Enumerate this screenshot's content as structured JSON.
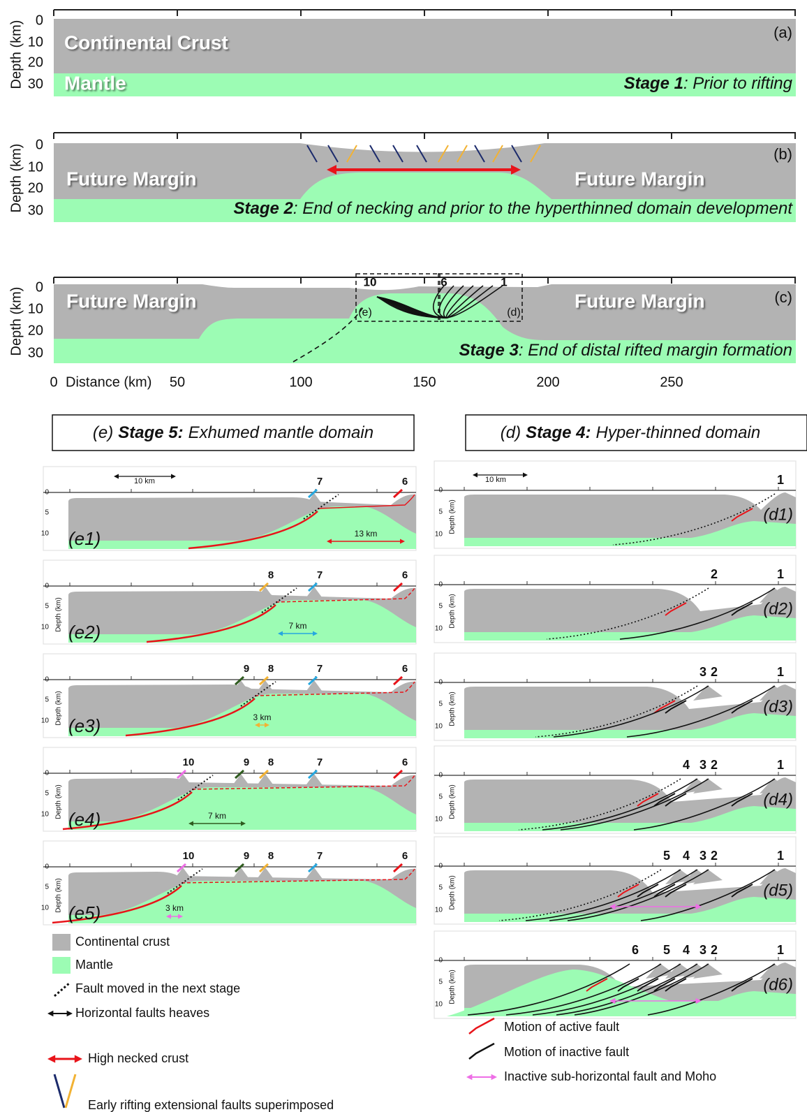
{
  "top_panels": [
    {
      "depth_label": "Depth (km)",
      "depth_ticks": [
        0,
        10,
        20,
        30
      ],
      "panel_label": "(a)",
      "texts": [
        "Continental Crust",
        "Mantle"
      ],
      "stage": "Stage 1",
      "stage_text": ": Prior to rifting"
    },
    {
      "depth_label": "Depth (km)",
      "depth_ticks": [
        0,
        10,
        20,
        30
      ],
      "panel_label": "(b)",
      "texts": [
        "Future Margin",
        "Future Margin"
      ],
      "stage": "Stage 2",
      "stage_text": ": End of necking and prior to the hyperthinned domain development"
    },
    {
      "depth_label": "Depth (km)",
      "depth_ticks": [
        0,
        10,
        20,
        30
      ],
      "panel_label": "(c)",
      "texts": [
        "Future Margin",
        "Future Margin"
      ],
      "box_labels": [
        "10",
        "6",
        "1"
      ],
      "box_names": [
        "(e)",
        "(d)"
      ],
      "stage": "Stage 3",
      "stage_text": ": End of distal rifted margin formation"
    }
  ],
  "distance_axis": {
    "label": "Distance (km)",
    "ticks": [
      0,
      50,
      100,
      150,
      200,
      250
    ]
  },
  "panel_e": {
    "header": {
      "prefix": "(e)",
      "stage": "Stage 5:",
      "text": "Exhumed mantle domain"
    },
    "scale": "10 km",
    "subpanels": [
      {
        "label": "(e1)",
        "depth_ticks": [
          0,
          5,
          10
        ],
        "faults": [
          {
            "number": 7,
            "color": "#26a7df"
          },
          {
            "number": 6,
            "color": "#e8141a"
          }
        ],
        "heave": {
          "text": "13 km",
          "color": "#e8141a"
        }
      },
      {
        "label": "(e2)",
        "depth_label": "Depth (km)",
        "depth_ticks": [
          0,
          5,
          10
        ],
        "faults": [
          {
            "number": 8,
            "color": "#f2b233"
          },
          {
            "number": 7,
            "color": "#26a7df"
          },
          {
            "number": 6,
            "color": "#e8141a"
          }
        ],
        "heave": {
          "text": "7 km",
          "color": "#26a7df"
        }
      },
      {
        "label": "(e3)",
        "depth_label": "Depth (km)",
        "depth_ticks": [
          0,
          5,
          10
        ],
        "faults": [
          {
            "number": 9,
            "color": "#2f5b1f"
          },
          {
            "number": 8,
            "color": "#f2b233"
          },
          {
            "number": 7,
            "color": "#26a7df"
          },
          {
            "number": 6,
            "color": "#e8141a"
          }
        ],
        "heave": {
          "text": "3 km",
          "color": "#f2b233"
        }
      },
      {
        "label": "(e4)",
        "depth_label": "Depth (km)",
        "depth_ticks": [
          0,
          5,
          10
        ],
        "faults": [
          {
            "number": 10,
            "color": "#ee6ee6"
          },
          {
            "number": 9,
            "color": "#2f5b1f"
          },
          {
            "number": 8,
            "color": "#f2b233"
          },
          {
            "number": 7,
            "color": "#26a7df"
          },
          {
            "number": 6,
            "color": "#e8141a"
          }
        ],
        "heave": {
          "text": "7 km",
          "color": "#2f5b1f"
        }
      },
      {
        "label": "(e5)",
        "depth_label": "Depth (km)",
        "depth_ticks": [
          0,
          5,
          10
        ],
        "faults": [
          {
            "number": 10,
            "color": "#ee6ee6"
          },
          {
            "number": 9,
            "color": "#2f5b1f"
          },
          {
            "number": 8,
            "color": "#f2b233"
          },
          {
            "number": 7,
            "color": "#26a7df"
          },
          {
            "number": 6,
            "color": "#e8141a"
          }
        ],
        "heave": {
          "text": "3 km",
          "color": "#ee6ee6"
        }
      }
    ]
  },
  "panel_d": {
    "header": {
      "prefix": "(d)",
      "stage": "Stage 4:",
      "text": "Hyper-thinned domain"
    },
    "scale": "10 km",
    "subpanels": [
      {
        "label": "(d1)",
        "depth_label": "Depth (km)",
        "depth_ticks": [
          0,
          5,
          10
        ],
        "faults": [
          {
            "number": 1,
            "color": "#e8141a"
          }
        ]
      },
      {
        "label": "(d2)",
        "depth_label": "Depth (km)",
        "depth_ticks": [
          0,
          5,
          10
        ],
        "faults": [
          {
            "number": 2,
            "color": "#e8141a"
          },
          {
            "number": 1,
            "color": "#111111"
          }
        ]
      },
      {
        "label": "(d3)",
        "depth_label": "Depth (km)",
        "depth_ticks": [
          0,
          5,
          10
        ],
        "faults": [
          {
            "number": 3,
            "color": "#e8141a"
          },
          {
            "number": 2,
            "color": "#111111"
          },
          {
            "number": 1,
            "color": "#111111"
          }
        ]
      },
      {
        "label": "(d4)",
        "depth_label": "Depth (km)",
        "depth_ticks": [
          0,
          5,
          10
        ],
        "faults": [
          {
            "number": 4,
            "color": "#e8141a"
          },
          {
            "number": 3,
            "color": "#111111"
          },
          {
            "number": 2,
            "color": "#111111"
          },
          {
            "number": 1,
            "color": "#111111"
          }
        ]
      },
      {
        "label": "(d5)",
        "depth_label": "Depth (km)",
        "depth_ticks": [
          0,
          5,
          10
        ],
        "faults": [
          {
            "number": 5,
            "color": "#e8141a"
          },
          {
            "number": 4,
            "color": "#111111"
          },
          {
            "number": 3,
            "color": "#111111"
          },
          {
            "number": 2,
            "color": "#111111"
          },
          {
            "number": 1,
            "color": "#111111"
          }
        ]
      },
      {
        "label": "(d6)",
        "depth_label": "Depth (km)",
        "depth_ticks": [
          0,
          5,
          10
        ],
        "faults": [
          {
            "number": 6,
            "color": "#e8141a"
          },
          {
            "number": 5,
            "color": "#111111"
          },
          {
            "number": 4,
            "color": "#111111"
          },
          {
            "number": 3,
            "color": "#111111"
          },
          {
            "number": 2,
            "color": "#111111"
          },
          {
            "number": 1,
            "color": "#111111"
          }
        ]
      }
    ]
  },
  "legend_e": [
    "Continental crust",
    "Mantle",
    "Fault moved in the next stage",
    "Horizontal faults heaves",
    "High necked crust",
    "Early rifting extensional faults superimposed"
  ],
  "legend_d": [
    "Motion of active fault",
    "Motion of inactive fault",
    "Inactive sub-horizontal fault and Moho"
  ]
}
